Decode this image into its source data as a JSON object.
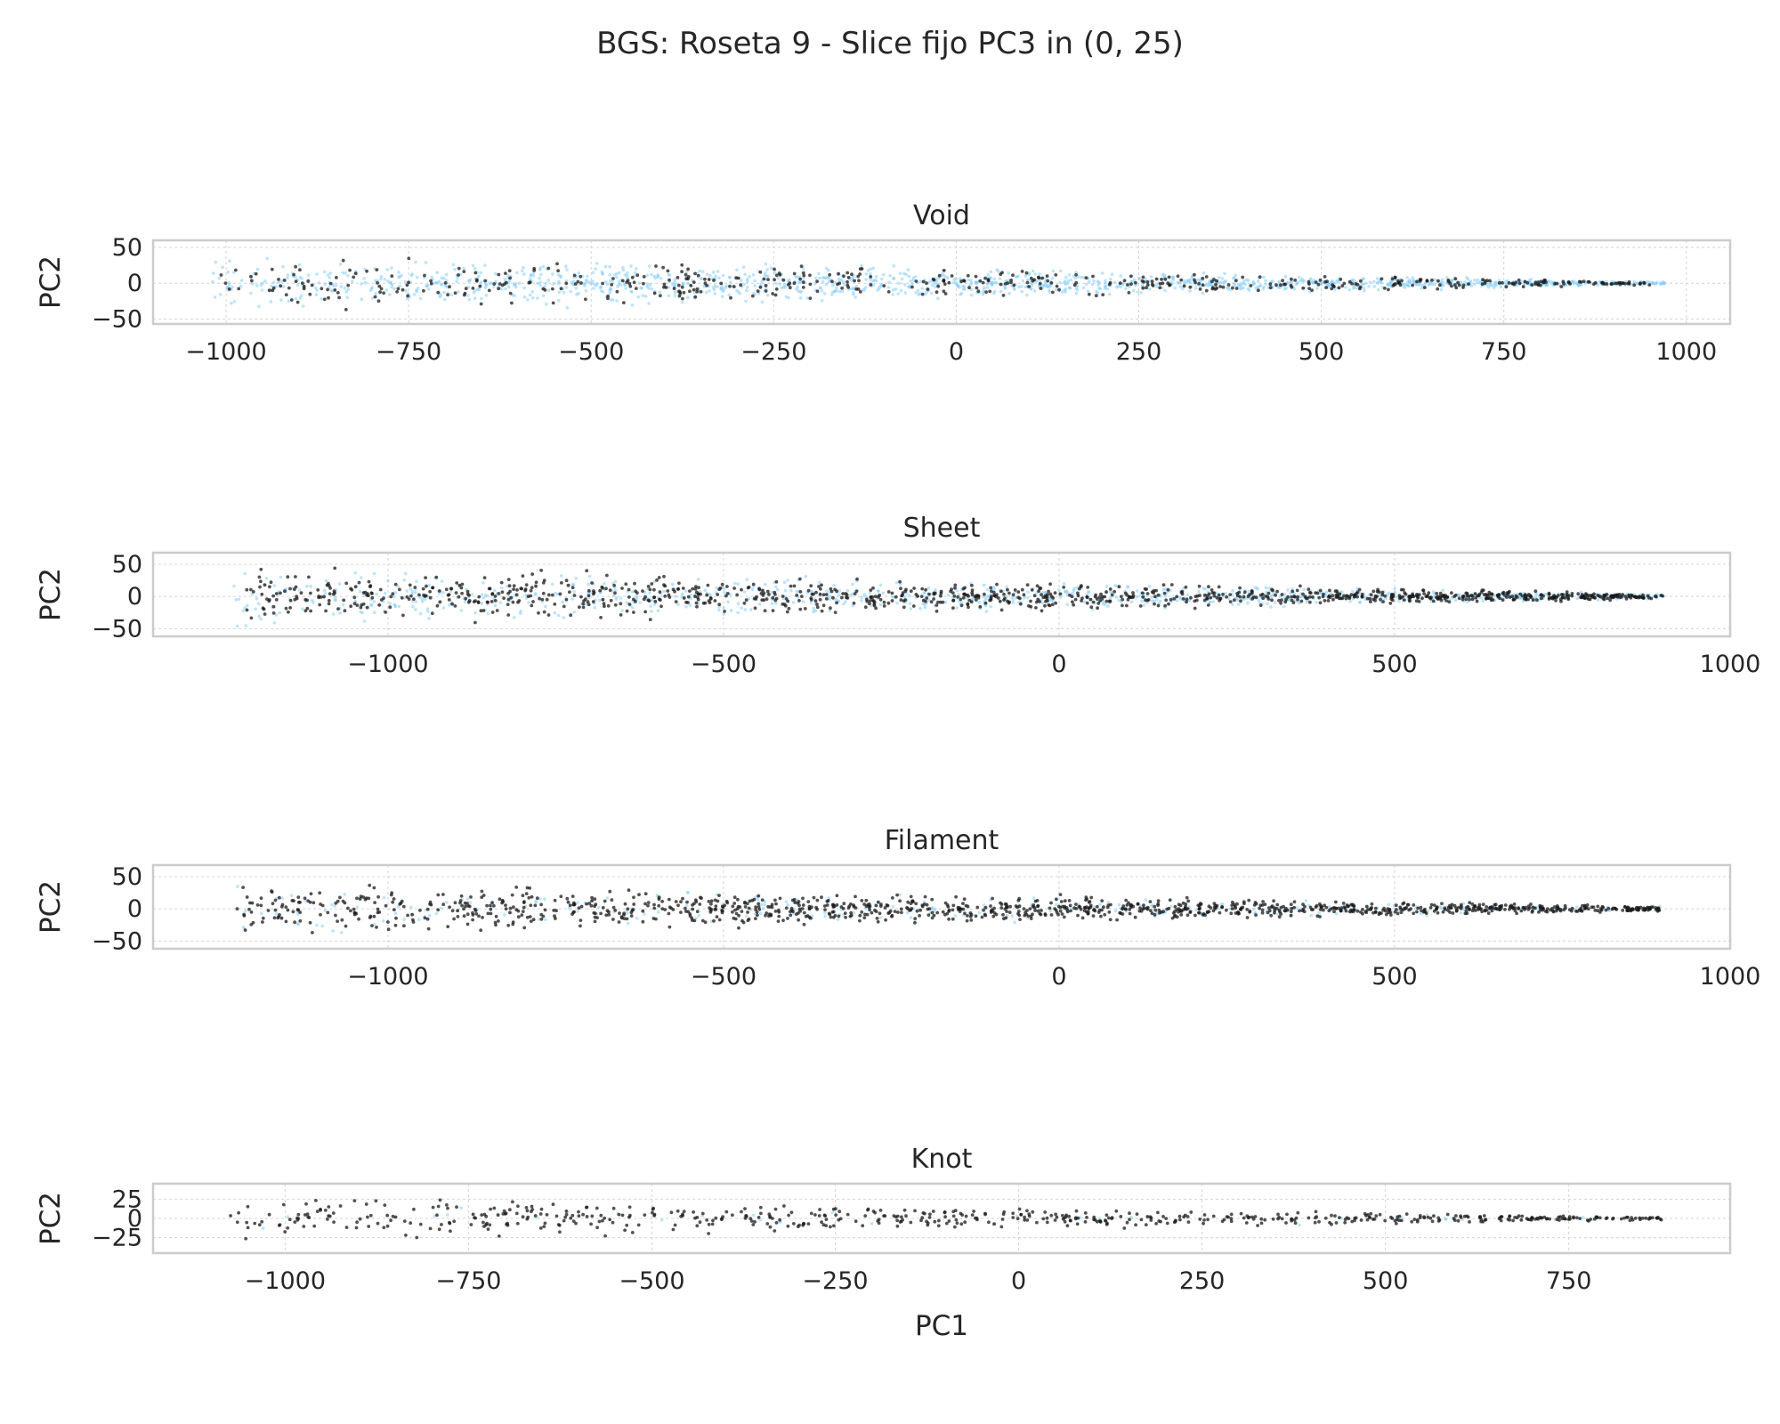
{
  "figure": {
    "title": "BGS: Roseta 9 - Slice fijo PC3 in (0, 25)",
    "colors": {
      "background_points": "#87CEFA",
      "class_points": "#1a1a1a",
      "frame": "#cccccc",
      "grid": "#d4d4d4"
    }
  },
  "chart_data": [
    {
      "type": "scatter",
      "title": "Void",
      "xlabel": "",
      "ylabel": "PC2",
      "xlim": [
        -1100,
        1060
      ],
      "ylim": [
        -57,
        60
      ],
      "xticks": [
        -1000,
        -750,
        -500,
        -250,
        0,
        250,
        500,
        750,
        1000
      ],
      "xtick_labels": [
        "−1000",
        "−750",
        "−500",
        "−250",
        "0",
        "250",
        "500",
        "750",
        "1000"
      ],
      "yticks": [
        50,
        0,
        -50
      ],
      "ytick_labels": [
        "50",
        "0",
        "−50"
      ],
      "grid": true,
      "background_points": {
        "color": "#87CEFA",
        "count": 1400,
        "x_range": [
          -1020,
          970
        ],
        "y_halfwidth_at_left": 50,
        "y_halfwidth_at_right": 3
      },
      "class_points": {
        "color": "#1a1a1a",
        "count": 520,
        "x_range": [
          -1010,
          950
        ],
        "y_halfwidth_at_left": 50,
        "y_halfwidth_at_right": 3
      }
    },
    {
      "type": "scatter",
      "title": "Sheet",
      "xlabel": "",
      "ylabel": "PC2",
      "xlim": [
        -1350,
        1000
      ],
      "ylim": [
        -62,
        68
      ],
      "xticks": [
        -1000,
        -500,
        0,
        500,
        1000
      ],
      "xtick_labels": [
        "−1000",
        "−500",
        "0",
        "500",
        "1000"
      ],
      "yticks": [
        50,
        0,
        -50
      ],
      "ytick_labels": [
        "50",
        "0",
        "−50"
      ],
      "grid": true,
      "background_points": {
        "color": "#87CEFA",
        "count": 900,
        "x_range": [
          -1230,
          900
        ],
        "y_halfwidth_at_left": 55,
        "y_halfwidth_at_right": 5
      },
      "class_points": {
        "color": "#1a1a1a",
        "count": 1100,
        "x_range": [
          -1230,
          900
        ],
        "y_halfwidth_at_left": 55,
        "y_halfwidth_at_right": 5
      }
    },
    {
      "type": "scatter",
      "title": "Filament",
      "xlabel": "",
      "ylabel": "PC2",
      "xlim": [
        -1350,
        1000
      ],
      "ylim": [
        -62,
        68
      ],
      "xticks": [
        -1000,
        -500,
        0,
        500,
        1000
      ],
      "xtick_labels": [
        "−1000",
        "−500",
        "0",
        "500",
        "1000"
      ],
      "yticks": [
        50,
        0,
        -50
      ],
      "ytick_labels": [
        "50",
        "0",
        "−50"
      ],
      "grid": true,
      "background_points": {
        "color": "#87CEFA",
        "count": 300,
        "x_range": [
          -1230,
          900
        ],
        "y_halfwidth_at_left": 50,
        "y_halfwidth_at_right": 5
      },
      "class_points": {
        "color": "#1a1a1a",
        "count": 1200,
        "x_range": [
          -1230,
          900
        ],
        "y_halfwidth_at_left": 50,
        "y_halfwidth_at_right": 5
      }
    },
    {
      "type": "scatter",
      "title": "Knot",
      "xlabel": "PC1",
      "ylabel": "PC2",
      "xlim": [
        -1180,
        970
      ],
      "ylim": [
        -45,
        45
      ],
      "xticks": [
        -1000,
        -750,
        -500,
        -250,
        0,
        250,
        500,
        750
      ],
      "xtick_labels": [
        "−1000",
        "−750",
        "−500",
        "−250",
        "0",
        "250",
        "500",
        "750"
      ],
      "yticks": [
        25,
        0,
        -25
      ],
      "ytick_labels": [
        "25",
        "0",
        "−25"
      ],
      "grid": true,
      "background_points": {
        "color": "#87CEFA",
        "count": 40,
        "x_range": [
          -1080,
          880
        ],
        "y_halfwidth_at_left": 35,
        "y_halfwidth_at_right": 3
      },
      "class_points": {
        "color": "#1a1a1a",
        "count": 600,
        "x_range": [
          -1080,
          880
        ],
        "y_halfwidth_at_left": 35,
        "y_halfwidth_at_right": 3
      }
    }
  ]
}
